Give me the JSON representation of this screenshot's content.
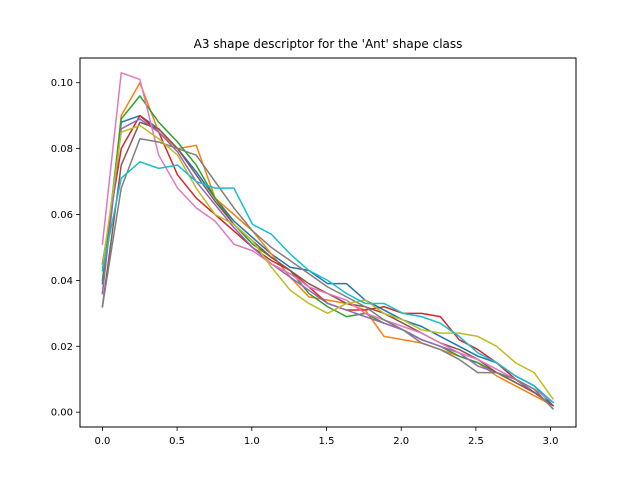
{
  "chart_data": {
    "type": "line",
    "title": "A3 shape descriptor for the 'Ant' shape class",
    "xlabel": "",
    "ylabel": "",
    "xlim": [
      -0.15,
      3.17
    ],
    "ylim": [
      -0.0045,
      0.1075
    ],
    "xticks": [
      0.0,
      0.5,
      1.0,
      1.5,
      2.0,
      2.5,
      3.0
    ],
    "xtick_labels": [
      "0.0",
      "0.5",
      "1.0",
      "1.5",
      "2.0",
      "2.5",
      "3.0"
    ],
    "yticks": [
      0.0,
      0.02,
      0.04,
      0.06,
      0.08,
      0.1
    ],
    "ytick_labels": [
      "0.00",
      "0.02",
      "0.04",
      "0.06",
      "0.08",
      "0.10"
    ],
    "grid": false,
    "legend": "none",
    "x": [
      0.0,
      0.126,
      0.251,
      0.377,
      0.503,
      0.628,
      0.754,
      0.88,
      1.005,
      1.131,
      1.257,
      1.382,
      1.508,
      1.634,
      1.759,
      1.885,
      2.011,
      2.136,
      2.262,
      2.388,
      2.513,
      2.639,
      2.765,
      2.89,
      3.016
    ],
    "series": [
      {
        "color": "#1f77b4",
        "values": [
          0.039,
          0.088,
          0.09,
          0.086,
          0.08,
          0.073,
          0.065,
          0.058,
          0.053,
          0.048,
          0.044,
          0.043,
          0.039,
          0.039,
          0.034,
          0.031,
          0.028,
          0.026,
          0.023,
          0.02,
          0.017,
          0.015,
          0.011,
          0.008,
          0.002
        ]
      },
      {
        "color": "#ff7f0e",
        "values": [
          0.036,
          0.09,
          0.1,
          0.085,
          0.08,
          0.081,
          0.065,
          0.06,
          0.055,
          0.048,
          0.041,
          0.035,
          0.034,
          0.033,
          0.031,
          0.023,
          0.022,
          0.021,
          0.019,
          0.017,
          0.015,
          0.011,
          0.008,
          0.005,
          0.002
        ]
      },
      {
        "color": "#2ca02c",
        "values": [
          0.04,
          0.089,
          0.096,
          0.088,
          0.082,
          0.075,
          0.065,
          0.057,
          0.051,
          0.047,
          0.043,
          0.036,
          0.032,
          0.029,
          0.03,
          0.027,
          0.025,
          0.022,
          0.02,
          0.017,
          0.015,
          0.012,
          0.009,
          0.006,
          0.002
        ]
      },
      {
        "color": "#d62728",
        "values": [
          0.045,
          0.08,
          0.09,
          0.085,
          0.072,
          0.065,
          0.06,
          0.055,
          0.05,
          0.046,
          0.043,
          0.038,
          0.033,
          0.031,
          0.031,
          0.032,
          0.03,
          0.03,
          0.029,
          0.022,
          0.019,
          0.015,
          0.01,
          0.006,
          0.002
        ]
      },
      {
        "color": "#9467bd",
        "values": [
          0.036,
          0.086,
          0.089,
          0.085,
          0.079,
          0.07,
          0.063,
          0.056,
          0.05,
          0.045,
          0.041,
          0.037,
          0.033,
          0.031,
          0.029,
          0.027,
          0.025,
          0.022,
          0.02,
          0.018,
          0.014,
          0.012,
          0.01,
          0.006,
          0.002
        ]
      },
      {
        "color": "#8c564b",
        "values": [
          0.032,
          0.075,
          0.088,
          0.086,
          0.08,
          0.072,
          0.064,
          0.057,
          0.052,
          0.047,
          0.043,
          0.039,
          0.036,
          0.033,
          0.032,
          0.03,
          0.027,
          0.024,
          0.021,
          0.019,
          0.016,
          0.012,
          0.009,
          0.006,
          0.002
        ]
      },
      {
        "color": "#e377c2",
        "values": [
          0.051,
          0.103,
          0.101,
          0.078,
          0.068,
          0.062,
          0.058,
          0.051,
          0.049,
          0.045,
          0.042,
          0.038,
          0.036,
          0.034,
          0.03,
          0.028,
          0.026,
          0.024,
          0.021,
          0.018,
          0.016,
          0.013,
          0.01,
          0.007,
          0.003
        ]
      },
      {
        "color": "#7f7f7f",
        "values": [
          0.032,
          0.068,
          0.083,
          0.082,
          0.08,
          0.078,
          0.07,
          0.062,
          0.055,
          0.05,
          0.046,
          0.042,
          0.038,
          0.035,
          0.032,
          0.028,
          0.025,
          0.021,
          0.019,
          0.016,
          0.012,
          0.012,
          0.01,
          0.007,
          0.001
        ]
      },
      {
        "color": "#bcbd22",
        "values": [
          0.044,
          0.085,
          0.087,
          0.083,
          0.078,
          0.068,
          0.06,
          0.057,
          0.052,
          0.044,
          0.037,
          0.033,
          0.03,
          0.033,
          0.034,
          0.03,
          0.028,
          0.025,
          0.024,
          0.024,
          0.023,
          0.02,
          0.015,
          0.012,
          0.004
        ]
      },
      {
        "color": "#17becf",
        "values": [
          0.043,
          0.071,
          0.076,
          0.074,
          0.075,
          0.07,
          0.068,
          0.068,
          0.057,
          0.054,
          0.048,
          0.043,
          0.04,
          0.036,
          0.033,
          0.033,
          0.03,
          0.029,
          0.027,
          0.023,
          0.018,
          0.015,
          0.011,
          0.008,
          0.003
        ]
      }
    ]
  }
}
